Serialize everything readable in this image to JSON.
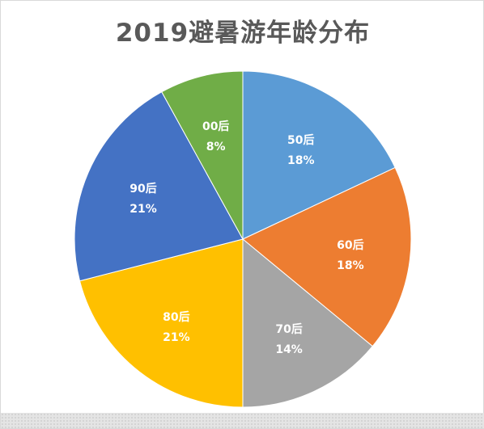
{
  "chart_data": {
    "type": "pie",
    "title": "2019避暑游年龄分布",
    "categories": [
      "50后",
      "60后",
      "70后",
      "80后",
      "90后",
      "00后"
    ],
    "values": [
      18,
      18,
      14,
      21,
      21,
      8
    ],
    "value_labels": [
      "18%",
      "18%",
      "14%",
      "21%",
      "21%",
      "8%"
    ],
    "colors": [
      "#5B9BD5",
      "#ED7D31",
      "#A5A5A5",
      "#FFC000",
      "#4472C4",
      "#70AD47"
    ],
    "start_angle_deg": 0,
    "direction": "clockwise",
    "legend": "none",
    "data_labels": "inside"
  }
}
